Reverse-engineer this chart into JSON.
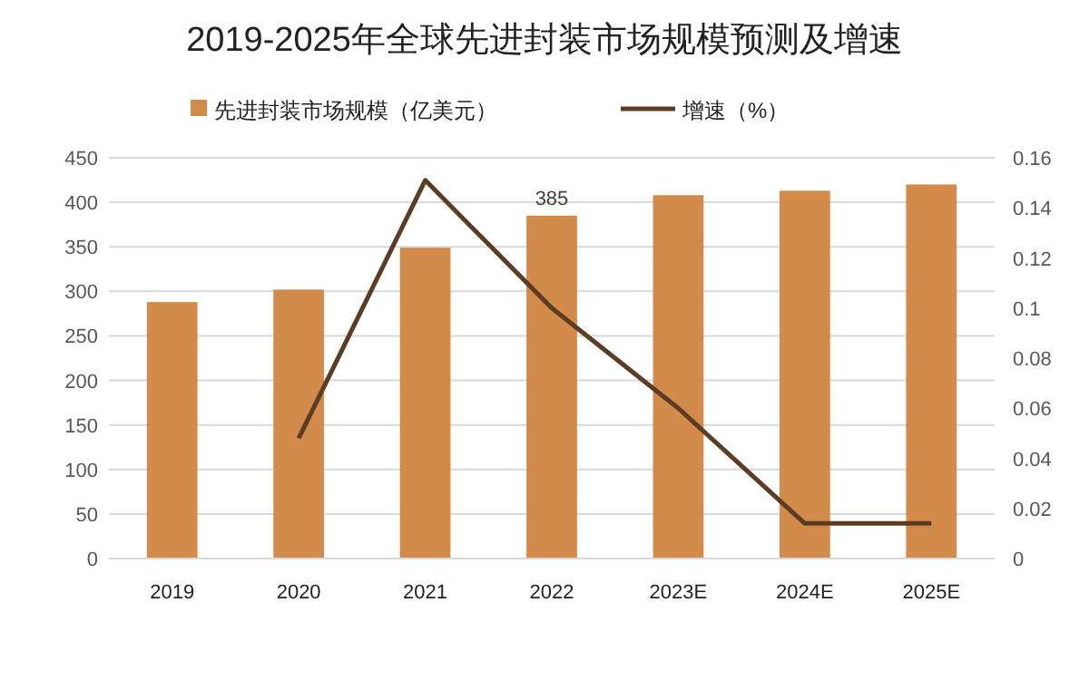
{
  "chart_data": {
    "type": "bar",
    "title": "2019-2025年全球先进封装市场规模预测及增速",
    "categories": [
      "2019",
      "2020",
      "2021",
      "2022",
      "2023E",
      "2024E",
      "2025E"
    ],
    "series": [
      {
        "name": "先进封装市场规模（亿美元）",
        "color": "#d38b4b",
        "values": [
          288,
          302,
          349,
          385,
          408,
          413,
          420
        ],
        "value_labels": [
          null,
          null,
          null,
          "385",
          null,
          null,
          null
        ]
      },
      {
        "name": "增速（%）",
        "type": "line",
        "axis": "y2",
        "color": "#5c3d24",
        "values": [
          null,
          0.048,
          0.151,
          0.1,
          0.06,
          0.014,
          0.014
        ]
      }
    ],
    "ylim": [
      0,
      450
    ],
    "yticks": [
      0,
      50,
      100,
      150,
      200,
      250,
      300,
      350,
      400,
      450
    ],
    "y2lim": [
      0,
      0.16
    ],
    "y2ticks": [
      0,
      0.02,
      0.04,
      0.06,
      0.08,
      0.1,
      0.12,
      0.14,
      0.16
    ],
    "grid": "y",
    "legend": "top",
    "marker": "none",
    "line_style": "solid"
  }
}
